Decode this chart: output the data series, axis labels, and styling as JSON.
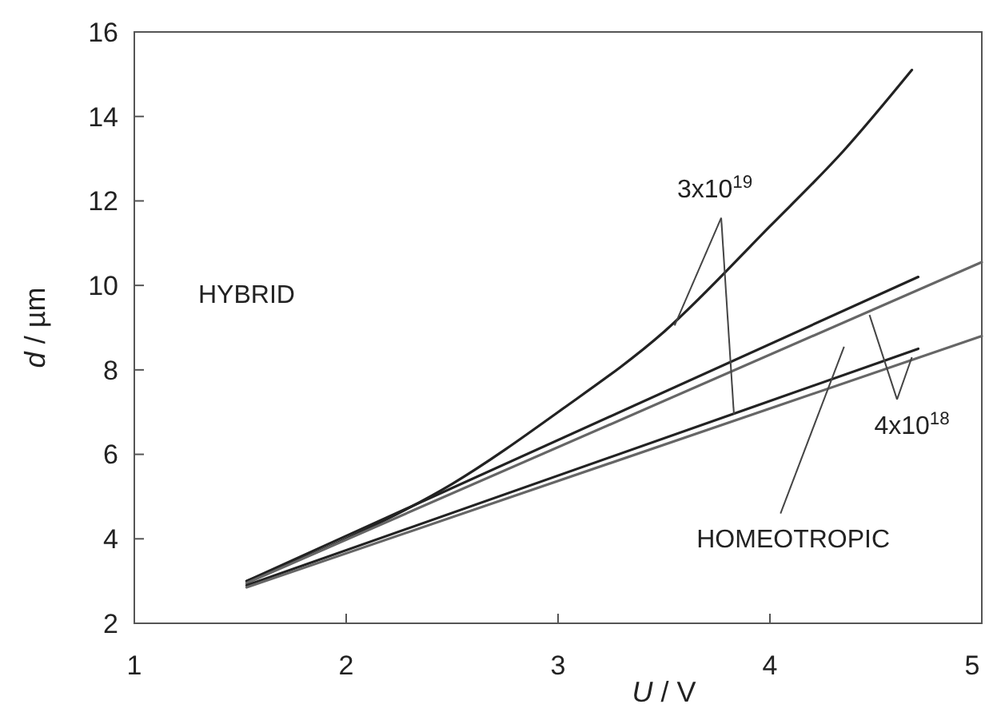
{
  "chart_data": {
    "type": "line",
    "xlabel": "U / V",
    "ylabel": "d / µm",
    "xlim": [
      1,
      5
    ],
    "ylim": [
      2,
      16
    ],
    "xticks": [
      1,
      2,
      3,
      4,
      5
    ],
    "yticks": [
      2,
      4,
      6,
      8,
      10,
      12,
      14,
      16
    ],
    "grid": false,
    "marker": "none",
    "line_style": "solid",
    "series": [
      {
        "color": "#222222",
        "x": [
          1.53,
          2,
          2.5,
          3,
          3.5,
          4,
          4.35,
          4.67
        ],
        "values": [
          3.0,
          4.0,
          5.3,
          7.0,
          8.9,
          11.4,
          13.2,
          15.1
        ]
      },
      {
        "color": "#222222",
        "x": [
          1.53,
          4.7
        ],
        "values": [
          3.0,
          10.2
        ]
      },
      {
        "color": "#666666",
        "x": [
          1.53,
          5
        ],
        "values": [
          2.95,
          10.55
        ]
      },
      {
        "color": "#222222",
        "x": [
          1.53,
          4.7
        ],
        "values": [
          2.9,
          8.5
        ]
      },
      {
        "color": "#666666",
        "x": [
          1.53,
          5
        ],
        "values": [
          2.85,
          8.8
        ]
      }
    ],
    "annotations": [
      {
        "text": "3x10$^{19}$",
        "x": 3.55,
        "y": 9.05
      },
      {
        "text": "4x10$^{18}$",
        "x": 4.47,
        "y": 9.3
      },
      "HYBRID",
      "HOMEOTROPIC"
    ]
  }
}
